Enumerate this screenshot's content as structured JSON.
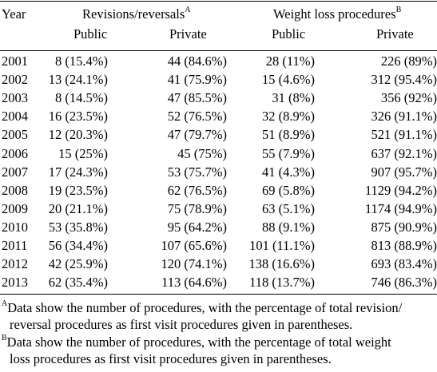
{
  "table": {
    "header": {
      "year": "Year",
      "group1": "Revisions/reversals",
      "group1_marker": "A",
      "group2": "Weight loss procedures",
      "group2_marker": "B",
      "sub1": "Public",
      "sub2": "Private",
      "sub3": "Public",
      "sub4": "Private"
    },
    "rows": [
      [
        "2001",
        "8 (15.4%)",
        "44 (84.6%)",
        "28 (11%)",
        "226 (89%)"
      ],
      [
        "2002",
        "13 (24.1%)",
        "41 (75.9%)",
        "15 (4.6%)",
        "312 (95.4%)"
      ],
      [
        "2003",
        "8 (14.5%)",
        "47 (85.5%)",
        "31 (8%)",
        "356 (92%)"
      ],
      [
        "2004",
        "16 (23.5%)",
        "52 (76.5%)",
        "32 (8.9%)",
        "326 (91.1%)"
      ],
      [
        "2005",
        "12 (20.3%)",
        "47 (79.7%)",
        "51 (8.9%)",
        "521 (91.1%)"
      ],
      [
        "2006",
        "15 (25%)",
        "45 (75%)",
        "55 (7.9%)",
        "637 (92.1%)"
      ],
      [
        "2007",
        "17 (24.3%)",
        "53 (75.7%)",
        "41 (4.3%)",
        "907 (95.7%)"
      ],
      [
        "2008",
        "19 (23.5%)",
        "62 (76.5%)",
        "69 (5.8%)",
        "1129 (94.2%)"
      ],
      [
        "2009",
        "20 (21.1%)",
        "75 (78.9%)",
        "63 (5.1%)",
        "1174 (94.9%)"
      ],
      [
        "2010",
        "53 (35.8%)",
        "95 (64.2%)",
        "88 (9.1%)",
        "875 (90.9%)"
      ],
      [
        "2011",
        "56 (34.4%)",
        "107 (65.6%)",
        "101 (11.1%)",
        "813 (88.9%)"
      ],
      [
        "2012",
        "42 (25.9%)",
        "120 (74.1%)",
        "138 (16.6%)",
        "693 (83.4%)"
      ],
      [
        "2013",
        "62 (35.4%)",
        "113 (64.6%)",
        "118 (13.7%)",
        "746 (86.3%)"
      ]
    ]
  },
  "footnotes": {
    "a": {
      "marker": "A",
      "line1": "Data show the number of procedures, with the percentage of total revision/",
      "line2": "reversal procedures as first visit procedures given in parentheses."
    },
    "b": {
      "marker": "B",
      "line1": "Data show the number of procedures, with the percentage of total weight",
      "line2": "loss procedures as first visit procedures given in parentheses."
    }
  }
}
